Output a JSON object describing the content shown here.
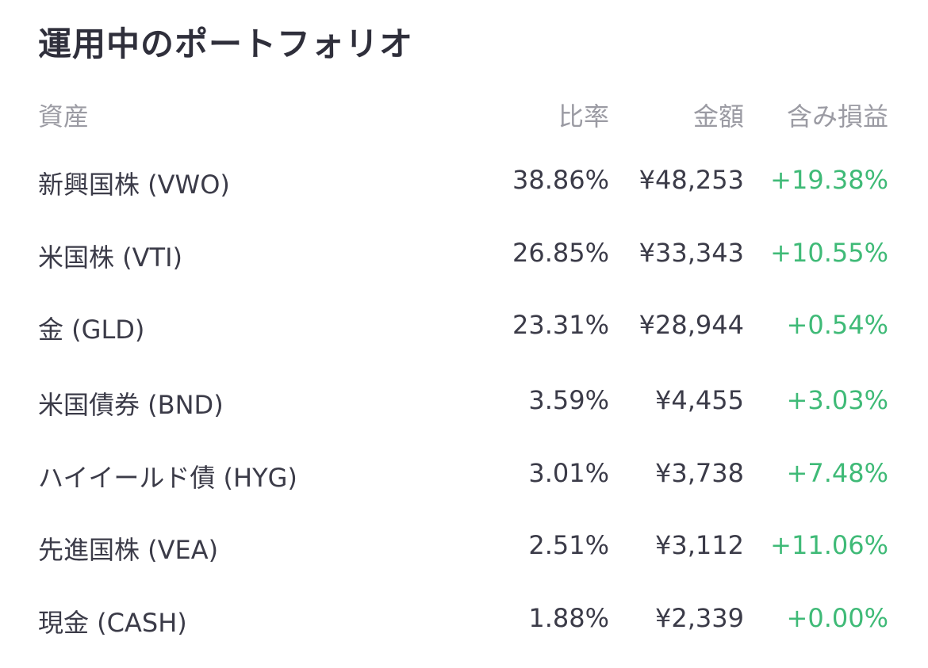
{
  "title": "運用中のポートフォリオ",
  "table": {
    "headers": {
      "asset": "資産",
      "ratio": "比率",
      "amount": "金額",
      "pl": "含み損益"
    },
    "rows": [
      {
        "asset": "新興国株 (VWO)",
        "ratio": "38.86%",
        "amount": "¥48,253",
        "pl": "+19.38%"
      },
      {
        "asset": "米国株 (VTI)",
        "ratio": "26.85%",
        "amount": "¥33,343",
        "pl": "+10.55%"
      },
      {
        "asset": "金 (GLD)",
        "ratio": "23.31%",
        "amount": "¥28,944",
        "pl": "+0.54%"
      },
      {
        "asset": "米国債券 (BND)",
        "ratio": "3.59%",
        "amount": "¥4,455",
        "pl": "+3.03%"
      },
      {
        "asset": "ハイイールド債 (HYG)",
        "ratio": "3.01%",
        "amount": "¥3,738",
        "pl": "+7.48%"
      },
      {
        "asset": "先進国株 (VEA)",
        "ratio": "2.51%",
        "amount": "¥3,112",
        "pl": "+11.06%"
      },
      {
        "asset": "現金 (CASH)",
        "ratio": "1.88%",
        "amount": "¥2,339",
        "pl": "+0.00%"
      }
    ]
  },
  "colors": {
    "text": "#3b3b48",
    "header": "#9b9ba3",
    "positive": "#3fba77"
  }
}
